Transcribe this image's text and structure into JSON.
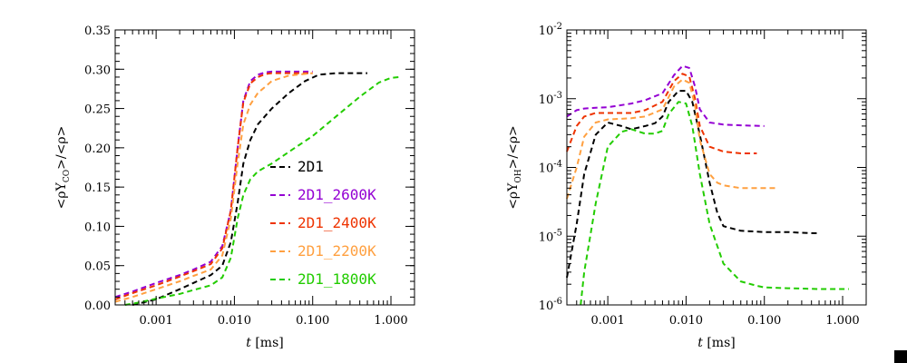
{
  "chart_data": [
    {
      "type": "line",
      "xscale": "log",
      "yscale": "linear",
      "xlim": [
        0.0003,
        2.0
      ],
      "ylim": [
        0,
        0.35
      ],
      "xlabel": "t [ms]",
      "xlabel_var": "t",
      "xlabel_unit": "[ms]",
      "ylabel": "<ρY_CO>/<ρ>",
      "ylabel_pre": "<ρY",
      "ylabel_sub": "CO",
      "ylabel_post": ">/<ρ>",
      "xticks": [
        0.001,
        0.01,
        0.1,
        1.0
      ],
      "xtick_labels": [
        "0.001",
        "0.010",
        "0.100",
        "1.000"
      ],
      "yticks": [
        0.0,
        0.05,
        0.1,
        0.15,
        0.2,
        0.25,
        0.3,
        0.35
      ],
      "ytick_labels": [
        "0.00",
        "0.05",
        "0.10",
        "0.15",
        "0.20",
        "0.25",
        "0.30",
        "0.35"
      ],
      "legend_position": "center-right",
      "series": [
        {
          "name": "2D1",
          "color": "#000000",
          "x": [
            0.0005,
            0.001,
            0.002,
            0.003,
            0.005,
            0.007,
            0.009,
            0.011,
            0.013,
            0.016,
            0.02,
            0.03,
            0.05,
            0.08,
            0.12,
            0.2,
            0.3,
            0.5
          ],
          "y": [
            0.0,
            0.007,
            0.02,
            0.028,
            0.038,
            0.05,
            0.08,
            0.13,
            0.18,
            0.21,
            0.23,
            0.25,
            0.27,
            0.285,
            0.293,
            0.295,
            0.295,
            0.295
          ]
        },
        {
          "name": "2D1_2600K",
          "color": "#9400d3",
          "x": [
            0.0003,
            0.0005,
            0.001,
            0.002,
            0.003,
            0.005,
            0.007,
            0.009,
            0.011,
            0.013,
            0.016,
            0.02,
            0.025,
            0.03,
            0.05,
            0.1
          ],
          "y": [
            0.01,
            0.017,
            0.028,
            0.038,
            0.045,
            0.055,
            0.075,
            0.12,
            0.2,
            0.26,
            0.285,
            0.293,
            0.296,
            0.297,
            0.297,
            0.297
          ]
        },
        {
          "name": "2D1_2400K",
          "color": "#ee3300",
          "x": [
            0.0003,
            0.0005,
            0.001,
            0.002,
            0.003,
            0.005,
            0.007,
            0.009,
            0.011,
            0.013,
            0.016,
            0.02,
            0.025,
            0.03,
            0.05,
            0.1
          ],
          "y": [
            0.007,
            0.015,
            0.025,
            0.036,
            0.043,
            0.052,
            0.072,
            0.12,
            0.2,
            0.258,
            0.282,
            0.29,
            0.294,
            0.295,
            0.295,
            0.295
          ]
        },
        {
          "name": "2D1_2200K",
          "color": "#ffa040",
          "x": [
            0.0003,
            0.0005,
            0.001,
            0.002,
            0.003,
            0.005,
            0.007,
            0.009,
            0.011,
            0.013,
            0.016,
            0.02,
            0.025,
            0.03,
            0.05,
            0.1
          ],
          "y": [
            0.004,
            0.01,
            0.02,
            0.03,
            0.037,
            0.045,
            0.063,
            0.11,
            0.18,
            0.23,
            0.255,
            0.27,
            0.278,
            0.285,
            0.292,
            0.295
          ]
        },
        {
          "name": "2D1_1800K",
          "color": "#22cc00",
          "x": [
            0.0004,
            0.0006,
            0.001,
            0.002,
            0.003,
            0.005,
            0.007,
            0.009,
            0.011,
            0.013,
            0.016,
            0.02,
            0.03,
            0.05,
            0.1,
            0.2,
            0.4,
            0.7,
            1.0,
            1.3
          ],
          "y": [
            0.0,
            0.003,
            0.008,
            0.014,
            0.019,
            0.025,
            0.035,
            0.06,
            0.11,
            0.14,
            0.16,
            0.17,
            0.18,
            0.195,
            0.215,
            0.24,
            0.265,
            0.283,
            0.289,
            0.29
          ]
        }
      ]
    },
    {
      "type": "line",
      "xscale": "log",
      "yscale": "log",
      "xlim": [
        0.0003,
        2.0
      ],
      "ylim": [
        1e-06,
        0.01
      ],
      "xlabel": "t [ms]",
      "xlabel_var": "t",
      "xlabel_unit": "[ms]",
      "ylabel": "<ρY_OH>/<ρ>",
      "ylabel_pre": "<ρY",
      "ylabel_sub": "OH",
      "ylabel_post": ">/<ρ>",
      "xticks": [
        0.001,
        0.01,
        0.1,
        1.0
      ],
      "xtick_labels": [
        "0.001",
        "0.010",
        "0.100",
        "1.000"
      ],
      "yticks": [
        1e-06,
        1e-05,
        0.0001,
        0.001,
        0.01
      ],
      "ytick_bases": [
        "10",
        "10",
        "10",
        "10",
        "10"
      ],
      "ytick_exps": [
        "-6",
        "-5",
        "-4",
        "-3",
        "-2"
      ],
      "series": [
        {
          "name": "2D1",
          "color": "#000000",
          "x": [
            0.0003,
            0.0004,
            0.0005,
            0.0007,
            0.001,
            0.0015,
            0.002,
            0.003,
            0.004,
            0.005,
            0.006,
            0.008,
            0.01,
            0.012,
            0.015,
            0.02,
            0.025,
            0.03,
            0.05,
            0.1,
            0.2,
            0.3,
            0.5
          ],
          "y": [
            2.5e-06,
            1.5e-05,
            8e-05,
            0.0003,
            0.00045,
            0.0004,
            0.00036,
            0.0004,
            0.00044,
            0.00055,
            0.0009,
            0.0013,
            0.0013,
            0.0009,
            0.0003,
            6e-05,
            2.2e-05,
            1.4e-05,
            1.2e-05,
            1.15e-05,
            1.15e-05,
            1.12e-05,
            1.1e-05
          ]
        },
        {
          "name": "2D1_2600K",
          "color": "#9400d3",
          "x": [
            0.0003,
            0.0004,
            0.0005,
            0.0007,
            0.001,
            0.002,
            0.003,
            0.005,
            0.007,
            0.009,
            0.011,
            0.013,
            0.015,
            0.02,
            0.03,
            0.05,
            0.1
          ],
          "y": [
            0.00055,
            0.00068,
            0.00072,
            0.00074,
            0.00075,
            0.00085,
            0.00095,
            0.0012,
            0.0022,
            0.003,
            0.0028,
            0.0015,
            0.0007,
            0.00045,
            0.00042,
            0.00041,
            0.0004
          ]
        },
        {
          "name": "2D1_2400K",
          "color": "#ee3300",
          "x": [
            0.0003,
            0.0004,
            0.0005,
            0.0007,
            0.001,
            0.002,
            0.003,
            0.005,
            0.007,
            0.009,
            0.011,
            0.013,
            0.015,
            0.02,
            0.03,
            0.05,
            0.08
          ],
          "y": [
            0.00017,
            0.0004,
            0.00055,
            0.00062,
            0.00062,
            0.00062,
            0.00068,
            0.0009,
            0.0018,
            0.0023,
            0.0021,
            0.001,
            0.0004,
            0.0002,
            0.00017,
            0.00016,
            0.00016
          ]
        },
        {
          "name": "2D1_2200K",
          "color": "#ffa040",
          "x": [
            0.0003,
            0.0004,
            0.0005,
            0.0007,
            0.001,
            0.002,
            0.003,
            0.005,
            0.007,
            0.009,
            0.011,
            0.013,
            0.015,
            0.02,
            0.025,
            0.03,
            0.05,
            0.1,
            0.15
          ],
          "y": [
            3.5e-05,
            0.0001,
            0.00028,
            0.00045,
            0.0005,
            0.00052,
            0.00055,
            0.0007,
            0.0015,
            0.0019,
            0.0017,
            0.0008,
            0.00025,
            8e-05,
            6e-05,
            5.5e-05,
            5e-05,
            5e-05,
            5e-05
          ]
        },
        {
          "name": "2D1_1800K",
          "color": "#22cc00",
          "x": [
            0.00045,
            0.0005,
            0.0007,
            0.001,
            0.0015,
            0.002,
            0.003,
            0.004,
            0.005,
            0.006,
            0.008,
            0.01,
            0.012,
            0.015,
            0.02,
            0.03,
            0.05,
            0.08,
            0.1,
            0.2,
            0.5,
            1.0,
            1.2
          ],
          "y": [
            1e-06,
            3e-06,
            3e-05,
            0.0002,
            0.00033,
            0.00036,
            0.00031,
            0.00031,
            0.00034,
            0.0006,
            0.0009,
            0.00085,
            0.0004,
            8e-05,
            1.5e-05,
            4e-06,
            2.2e-06,
            1.9e-06,
            1.8e-06,
            1.75e-06,
            1.7e-06,
            1.7e-06,
            1.7e-06
          ]
        }
      ]
    }
  ]
}
